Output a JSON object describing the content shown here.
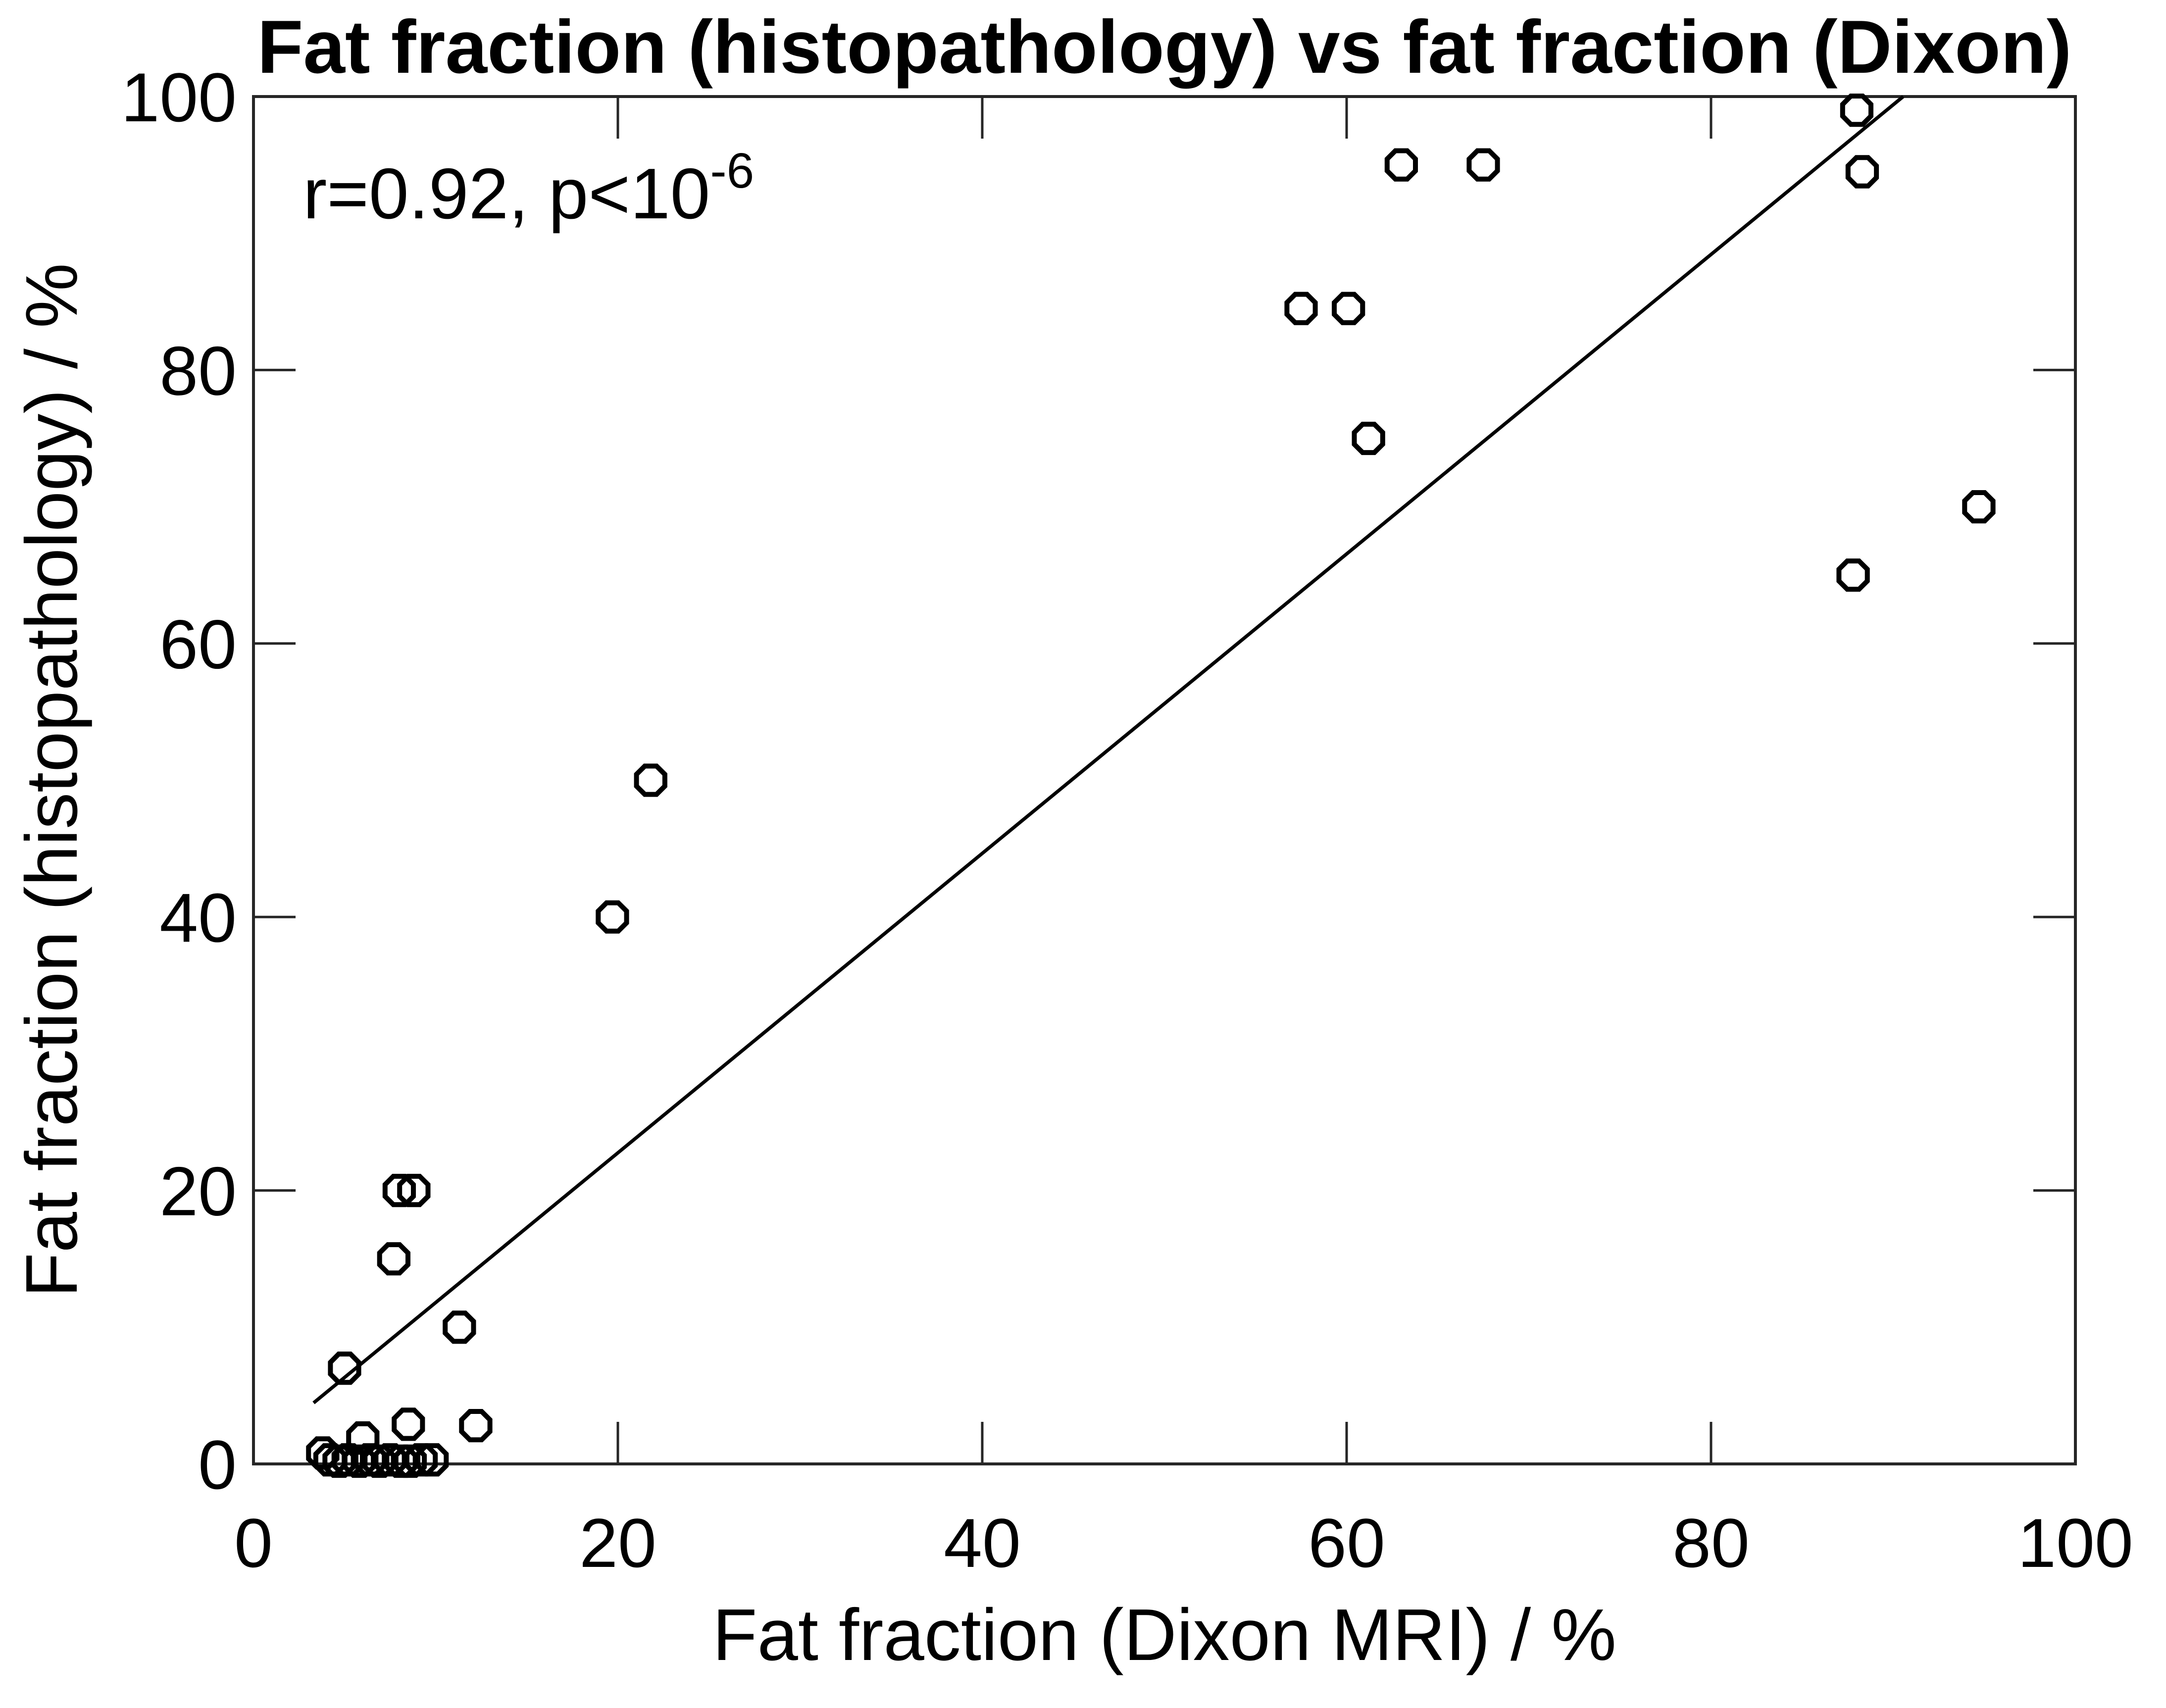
{
  "title": "Fat fraction (histopathology) vs fat fraction (Dixon)",
  "annotation": {
    "text": "r=0.92, p<10",
    "superscript": "-6"
  },
  "colors": {
    "background": "#ffffff",
    "axis": "#262626",
    "data": "#000000",
    "text": "#000000"
  },
  "chart_data": {
    "type": "scatter",
    "title": "Fat fraction (histopathology) vs fat fraction (Dixon)",
    "xlabel": "Fat fraction (Dixon MRI) / %",
    "ylabel": "Fat fraction (histopathology) / %",
    "xlim": [
      0,
      100
    ],
    "ylim": [
      0,
      100
    ],
    "xticks": [
      0,
      20,
      40,
      60,
      80,
      100
    ],
    "yticks": [
      0,
      20,
      40,
      60,
      80,
      100
    ],
    "grid": false,
    "legend": false,
    "annotation_text": "r=0.92, p<10^-6",
    "marker": {
      "shape": "octagon",
      "fill": "none",
      "stroke": "#000000"
    },
    "points": [
      [
        3.8,
        0.8
      ],
      [
        4.2,
        0.3
      ],
      [
        4.7,
        0.2
      ],
      [
        5.2,
        0.3
      ],
      [
        5.8,
        0.2
      ],
      [
        6.4,
        0.3
      ],
      [
        6.9,
        0.2
      ],
      [
        7.5,
        0.3
      ],
      [
        8.1,
        0.2
      ],
      [
        8.6,
        0.2
      ],
      [
        9.2,
        0.3
      ],
      [
        9.8,
        0.3
      ],
      [
        6.0,
        1.9
      ],
      [
        8.5,
        2.9
      ],
      [
        12.2,
        2.8
      ],
      [
        5.0,
        7.0
      ],
      [
        11.3,
        10.0
      ],
      [
        7.7,
        15.0
      ],
      [
        8.0,
        20.0
      ],
      [
        8.8,
        20.0
      ],
      [
        19.7,
        40.0
      ],
      [
        21.8,
        50.0
      ],
      [
        57.5,
        84.5
      ],
      [
        60.1,
        84.5
      ],
      [
        61.2,
        75.0
      ],
      [
        63.0,
        95.0
      ],
      [
        67.5,
        95.0
      ],
      [
        88.0,
        99.0
      ],
      [
        88.3,
        94.5
      ],
      [
        87.8,
        65.0
      ],
      [
        94.7,
        70.0
      ]
    ],
    "fit_line": {
      "slope": 1.095,
      "intercept": 0.85,
      "x_start": 3.3,
      "y_clip_max": 100
    }
  }
}
